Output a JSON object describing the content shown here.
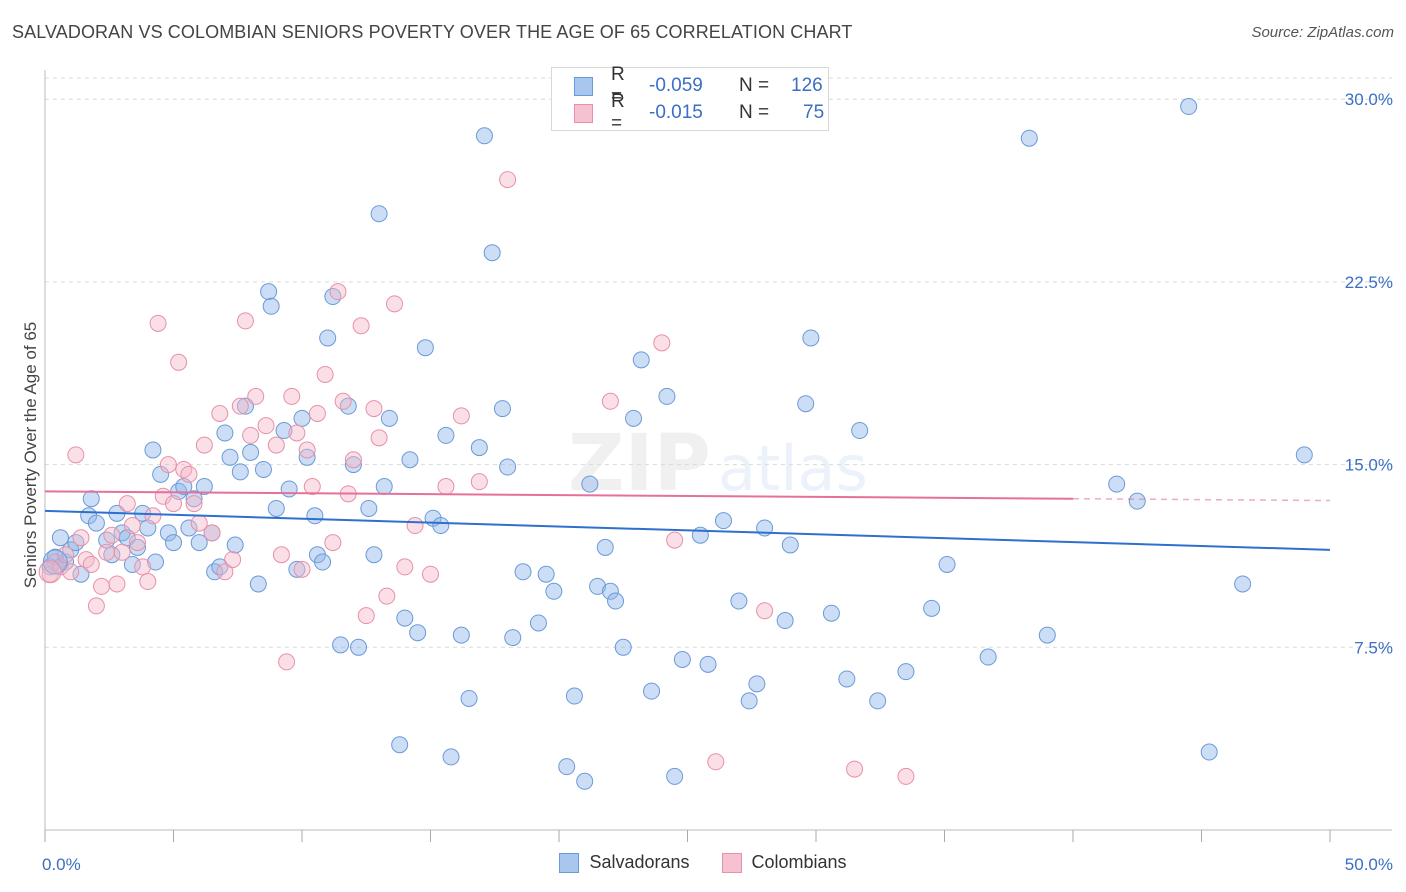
{
  "header": {
    "title": "SALVADORAN VS COLOMBIAN SENIORS POVERTY OVER THE AGE OF 65 CORRELATION CHART",
    "source": "Source: ZipAtlas.com"
  },
  "watermark": {
    "part1": "ZIP",
    "part2": "atlas"
  },
  "legend": {
    "rows": [
      {
        "r_label": "R =",
        "r_value": "-0.059",
        "n_label": "N =",
        "n_value": "126",
        "color": "#a8c6ee",
        "border": "#6b9ad8"
      },
      {
        "r_label": "R =",
        "r_value": "-0.015",
        "n_label": "N =",
        "n_value": "75",
        "color": "#f6c1d0",
        "border": "#e890a8"
      }
    ]
  },
  "bottom_legend": [
    {
      "label": "Salvadorans",
      "color": "#a8c6ee",
      "border": "#6b9ad8"
    },
    {
      "label": "Colombians",
      "color": "#f6c1d0",
      "border": "#e890a8"
    }
  ],
  "chart_data": {
    "type": "scatter",
    "ylabel": "Seniors Poverty Over the Age of 65",
    "xlim": [
      0,
      50
    ],
    "ylim": [
      0,
      31.2
    ],
    "x_tick_labels": [
      {
        "value": 0,
        "label": "0.0%"
      },
      {
        "value": 50,
        "label": "50.0%"
      }
    ],
    "y_tick_labels": [
      {
        "value": 7.5,
        "label": "7.5%"
      },
      {
        "value": 15,
        "label": "15.0%"
      },
      {
        "value": 22.5,
        "label": "22.5%"
      },
      {
        "value": 30,
        "label": "30.0%"
      }
    ],
    "grid": true,
    "series": [
      {
        "name": "Salvadorans",
        "color": "#8fb5e8",
        "stroke": "#6b9ad8",
        "trend": {
          "x": [
            0,
            50
          ],
          "y": [
            13.1,
            11.5
          ],
          "color": "#2f6fce"
        },
        "points": [
          [
            0.2,
            10.8
          ],
          [
            0.4,
            11.2
          ],
          [
            0.6,
            12.0
          ],
          [
            0.8,
            11.0
          ],
          [
            1.0,
            11.5
          ],
          [
            1.2,
            11.8
          ],
          [
            1.4,
            10.5
          ],
          [
            1.7,
            12.9
          ],
          [
            1.8,
            13.6
          ],
          [
            2.0,
            12.6
          ],
          [
            2.4,
            11.9
          ],
          [
            2.6,
            11.3
          ],
          [
            2.8,
            13.0
          ],
          [
            3.0,
            12.2
          ],
          [
            3.2,
            12.0
          ],
          [
            3.4,
            10.9
          ],
          [
            3.6,
            11.6
          ],
          [
            3.8,
            13.0
          ],
          [
            4.0,
            12.4
          ],
          [
            4.2,
            15.6
          ],
          [
            4.3,
            11.0
          ],
          [
            4.5,
            14.6
          ],
          [
            4.8,
            12.2
          ],
          [
            5.0,
            11.8
          ],
          [
            5.2,
            13.9
          ],
          [
            5.4,
            14.1
          ],
          [
            5.6,
            12.4
          ],
          [
            5.8,
            13.6
          ],
          [
            6.0,
            11.8
          ],
          [
            6.2,
            14.1
          ],
          [
            6.5,
            12.2
          ],
          [
            6.6,
            10.6
          ],
          [
            6.8,
            10.8
          ],
          [
            7.0,
            16.3
          ],
          [
            7.2,
            15.3
          ],
          [
            7.4,
            11.7
          ],
          [
            7.6,
            14.7
          ],
          [
            7.8,
            17.4
          ],
          [
            8.0,
            15.5
          ],
          [
            8.3,
            10.1
          ],
          [
            8.5,
            14.8
          ],
          [
            8.7,
            22.1
          ],
          [
            8.8,
            21.5
          ],
          [
            9.0,
            13.2
          ],
          [
            9.3,
            16.4
          ],
          [
            9.5,
            14.0
          ],
          [
            9.8,
            10.7
          ],
          [
            10.0,
            16.9
          ],
          [
            10.2,
            15.3
          ],
          [
            10.5,
            12.9
          ],
          [
            10.6,
            11.3
          ],
          [
            10.8,
            11.0
          ],
          [
            11.0,
            20.2
          ],
          [
            11.2,
            21.9
          ],
          [
            11.5,
            7.6
          ],
          [
            11.8,
            17.4
          ],
          [
            12.0,
            15.0
          ],
          [
            12.2,
            7.5
          ],
          [
            12.6,
            13.2
          ],
          [
            12.8,
            11.3
          ],
          [
            13.0,
            25.3
          ],
          [
            13.2,
            14.1
          ],
          [
            13.4,
            16.9
          ],
          [
            13.8,
            3.5
          ],
          [
            14.0,
            8.7
          ],
          [
            14.2,
            15.2
          ],
          [
            14.5,
            8.1
          ],
          [
            14.8,
            19.8
          ],
          [
            15.1,
            12.8
          ],
          [
            15.4,
            12.5
          ],
          [
            15.6,
            16.2
          ],
          [
            15.8,
            3.0
          ],
          [
            16.2,
            8.0
          ],
          [
            16.5,
            5.4
          ],
          [
            16.9,
            15.7
          ],
          [
            17.1,
            28.5
          ],
          [
            17.4,
            23.7
          ],
          [
            17.8,
            17.3
          ],
          [
            18.0,
            14.9
          ],
          [
            18.2,
            7.9
          ],
          [
            18.6,
            10.6
          ],
          [
            19.2,
            8.5
          ],
          [
            19.5,
            10.5
          ],
          [
            19.8,
            9.8
          ],
          [
            20.3,
            2.6
          ],
          [
            20.6,
            5.5
          ],
          [
            21.0,
            2.0
          ],
          [
            21.2,
            14.2
          ],
          [
            21.5,
            10.0
          ],
          [
            21.8,
            11.6
          ],
          [
            22.0,
            9.8
          ],
          [
            22.2,
            9.4
          ],
          [
            22.5,
            7.5
          ],
          [
            22.9,
            16.9
          ],
          [
            23.2,
            19.3
          ],
          [
            23.6,
            5.7
          ],
          [
            24.2,
            17.8
          ],
          [
            24.5,
            2.2
          ],
          [
            24.8,
            7.0
          ],
          [
            25.5,
            12.1
          ],
          [
            25.8,
            6.8
          ],
          [
            26.4,
            12.7
          ],
          [
            27.0,
            9.4
          ],
          [
            27.4,
            5.3
          ],
          [
            27.7,
            6.0
          ],
          [
            28.0,
            12.4
          ],
          [
            28.8,
            8.6
          ],
          [
            29.0,
            11.7
          ],
          [
            29.6,
            17.5
          ],
          [
            29.8,
            20.2
          ],
          [
            30.6,
            8.9
          ],
          [
            31.2,
            6.2
          ],
          [
            31.7,
            16.4
          ],
          [
            32.4,
            5.3
          ],
          [
            33.5,
            6.5
          ],
          [
            34.5,
            9.1
          ],
          [
            35.1,
            10.9
          ],
          [
            36.7,
            7.1
          ],
          [
            38.3,
            28.4
          ],
          [
            39.0,
            8.0
          ],
          [
            41.7,
            14.2
          ],
          [
            42.5,
            13.5
          ],
          [
            44.5,
            29.7
          ],
          [
            45.3,
            3.2
          ],
          [
            46.6,
            10.1
          ],
          [
            49.0,
            15.4
          ]
        ]
      },
      {
        "name": "Colombians",
        "color": "#f4b8c9",
        "stroke": "#e890a8",
        "trend": {
          "x": [
            0,
            40
          ],
          "y": [
            13.9,
            13.6
          ],
          "dash_to": 50,
          "color": "#e5719a"
        },
        "points": [
          [
            0.2,
            10.5
          ],
          [
            0.4,
            11.0
          ],
          [
            0.6,
            10.8
          ],
          [
            0.8,
            11.3
          ],
          [
            1.0,
            10.6
          ],
          [
            1.2,
            15.4
          ],
          [
            1.4,
            12.0
          ],
          [
            1.6,
            11.1
          ],
          [
            1.8,
            10.9
          ],
          [
            2.0,
            9.2
          ],
          [
            2.2,
            10.0
          ],
          [
            2.4,
            11.4
          ],
          [
            2.6,
            12.1
          ],
          [
            2.8,
            10.1
          ],
          [
            3.0,
            11.4
          ],
          [
            3.2,
            13.4
          ],
          [
            3.4,
            12.5
          ],
          [
            3.6,
            11.8
          ],
          [
            3.8,
            10.8
          ],
          [
            4.0,
            10.2
          ],
          [
            4.2,
            12.9
          ],
          [
            4.4,
            20.8
          ],
          [
            4.6,
            13.7
          ],
          [
            4.8,
            15.0
          ],
          [
            5.0,
            13.4
          ],
          [
            5.2,
            19.2
          ],
          [
            5.4,
            14.8
          ],
          [
            5.6,
            14.6
          ],
          [
            5.8,
            13.4
          ],
          [
            6.0,
            12.6
          ],
          [
            6.2,
            15.8
          ],
          [
            6.5,
            12.2
          ],
          [
            6.8,
            17.1
          ],
          [
            7.0,
            10.6
          ],
          [
            7.3,
            11.1
          ],
          [
            7.6,
            17.4
          ],
          [
            7.8,
            20.9
          ],
          [
            8.0,
            16.2
          ],
          [
            8.2,
            17.8
          ],
          [
            8.6,
            16.6
          ],
          [
            9.0,
            15.8
          ],
          [
            9.2,
            11.3
          ],
          [
            9.4,
            6.9
          ],
          [
            9.6,
            17.8
          ],
          [
            9.8,
            16.3
          ],
          [
            10.0,
            10.7
          ],
          [
            10.2,
            15.6
          ],
          [
            10.4,
            14.1
          ],
          [
            10.6,
            17.1
          ],
          [
            10.9,
            18.7
          ],
          [
            11.2,
            11.8
          ],
          [
            11.4,
            22.1
          ],
          [
            11.6,
            17.6
          ],
          [
            11.8,
            13.8
          ],
          [
            12.0,
            15.2
          ],
          [
            12.3,
            20.7
          ],
          [
            12.5,
            8.8
          ],
          [
            12.8,
            17.3
          ],
          [
            13.0,
            16.1
          ],
          [
            13.3,
            9.6
          ],
          [
            13.6,
            21.6
          ],
          [
            14.0,
            10.8
          ],
          [
            14.4,
            12.5
          ],
          [
            15.0,
            10.5
          ],
          [
            15.6,
            14.1
          ],
          [
            16.2,
            17.0
          ],
          [
            16.9,
            14.3
          ],
          [
            18.0,
            26.7
          ],
          [
            22.0,
            17.6
          ],
          [
            24.0,
            20.0
          ],
          [
            24.5,
            11.9
          ],
          [
            26.1,
            2.8
          ],
          [
            28.0,
            9.0
          ],
          [
            31.5,
            2.5
          ],
          [
            33.5,
            2.2
          ]
        ]
      }
    ]
  }
}
